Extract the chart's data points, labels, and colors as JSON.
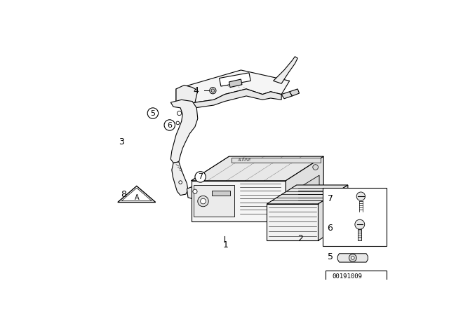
{
  "background_color": "#ffffff",
  "line_color": "#000000",
  "image_id": "00191009",
  "gray_fill": "#f0f0f0",
  "dark_fill": "#222222"
}
